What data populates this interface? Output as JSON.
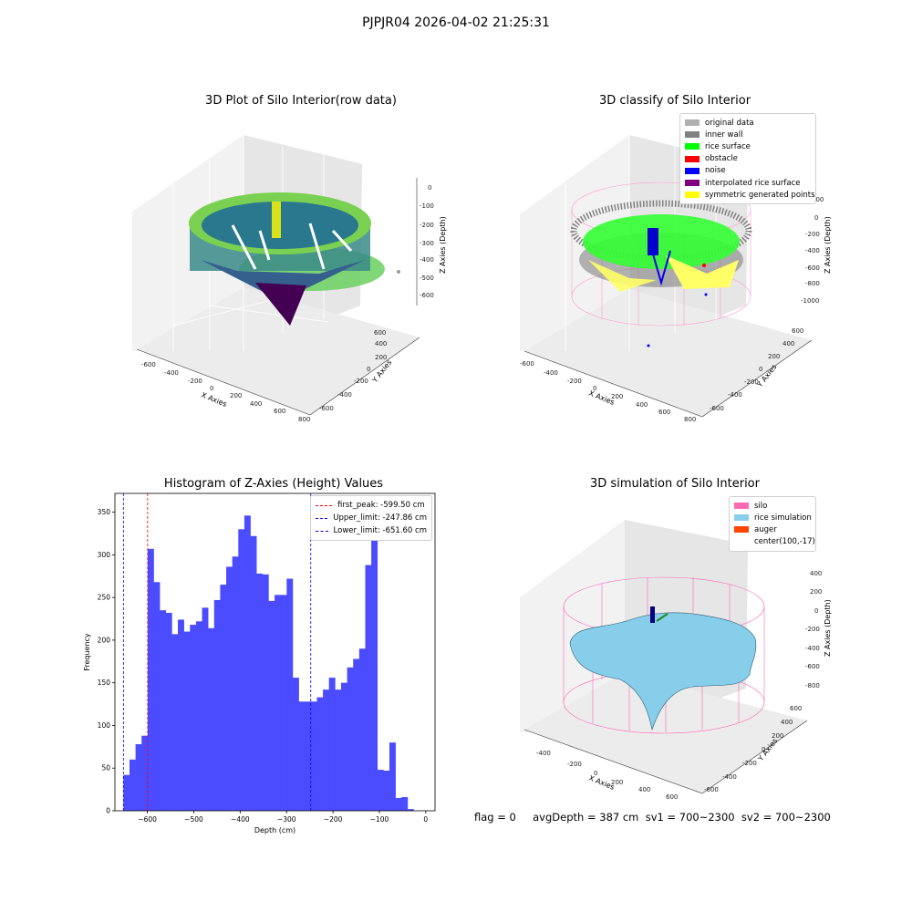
{
  "suptitle": "PJPJR04 2026-04-02 21:25:31",
  "footer": "flag = 0     avgDepth = 387 cm  sv1 = 700~2300  sv2 = 700~2300",
  "colors": {
    "histogram_bar": "#4b4bff",
    "first_peak": "#ff0000",
    "upper_limit": "#0000ff",
    "lower_limit": "#0000ff",
    "silo": "#ff69b4",
    "rice": "#87ceeb",
    "auger": "#ff4500"
  },
  "plot1": {
    "title": "3D Plot of Silo Interior(row data)",
    "xlabel": "X Axies",
    "ylabel": "Y Axies",
    "zlabel": "Z Axies (Depth)",
    "xticks": [
      "-600",
      "-400",
      "-200",
      "0",
      "200",
      "400",
      "600",
      "800"
    ],
    "yticks": [
      "-600",
      "-400",
      "-200",
      "0",
      "200",
      "400",
      "600"
    ],
    "zticks": [
      "0",
      "-100",
      "-200",
      "-300",
      "-400",
      "-500",
      "-600"
    ],
    "colormap": "viridis"
  },
  "plot2": {
    "title": "3D classify of Silo Interior",
    "xlabel": "X Axies",
    "ylabel": "Y Axies",
    "zlabel": "Z Axies (Depth)",
    "xticks": [
      "-600",
      "-400",
      "-200",
      "0",
      "200",
      "400",
      "600",
      "800"
    ],
    "yticks": [
      "-600",
      "-400",
      "-200",
      "0",
      "200",
      "400",
      "600"
    ],
    "zticks": [
      "200",
      "0",
      "-200",
      "-400",
      "-600",
      "-800",
      "-1000"
    ],
    "legend": [
      {
        "label": "original data",
        "color": "#b0b0b0"
      },
      {
        "label": "inner wall",
        "color": "#808080"
      },
      {
        "label": "rice surface",
        "color": "#00ff00"
      },
      {
        "label": "obstacle",
        "color": "#ff0000"
      },
      {
        "label": "noise",
        "color": "#0000ff"
      },
      {
        "label": "interpolated rice surface",
        "color": "#800080"
      },
      {
        "label": "symmetric generated points",
        "color": "#ffff00"
      }
    ]
  },
  "plot4": {
    "title": "3D simulation of Silo Interior",
    "xlabel": "X Axies",
    "ylabel": "Y Axies",
    "zlabel": "Z Axies (Depth)",
    "xticks": [
      "-400",
      "-200",
      "0",
      "200",
      "400",
      "600"
    ],
    "yticks": [
      "-600",
      "-400",
      "-200",
      "0",
      "200",
      "400",
      "600"
    ],
    "zticks": [
      "400",
      "200",
      "0",
      "-200",
      "-400",
      "-600",
      "-800"
    ],
    "legend": [
      {
        "label": "silo",
        "color": "#ff69b4"
      },
      {
        "label": "rice simulation",
        "color": "#87ceeb"
      },
      {
        "label": "auger",
        "color": "#ff4500"
      },
      {
        "label": "center(100,-17)",
        "color": ""
      }
    ]
  },
  "chart_data": {
    "type": "bar",
    "title": "Histogram of Z-Axies (Height) Values",
    "xlabel": "Depth (cm)",
    "ylabel": "Frequency",
    "xlim": [
      -670,
      20
    ],
    "ylim": [
      0,
      372
    ],
    "xticks": [
      -600,
      -500,
      -400,
      -300,
      -200,
      -100,
      0
    ],
    "yticks": [
      0,
      50,
      100,
      150,
      200,
      250,
      300,
      350
    ],
    "bin_start": -651.6,
    "bin_width": 13.03,
    "values": [
      42,
      60,
      78,
      88,
      307,
      268,
      235,
      232,
      207,
      224,
      210,
      218,
      222,
      238,
      214,
      247,
      265,
      286,
      298,
      330,
      346,
      322,
      278,
      277,
      246,
      253,
      253,
      272,
      156,
      128,
      128,
      128,
      133,
      142,
      156,
      142,
      150,
      168,
      178,
      190,
      288,
      350,
      48,
      47,
      80,
      15,
      16,
      2
    ],
    "lines": [
      {
        "name": "first_peak: -599.50 cm",
        "x": -599.5,
        "style": "dashed"
      },
      {
        "name": "Upper_limit: -247.86 cm",
        "x": -247.86,
        "style": "dashed"
      },
      {
        "name": "Lower_limit: -651.60 cm",
        "x": -651.6,
        "style": "dashed"
      }
    ]
  }
}
